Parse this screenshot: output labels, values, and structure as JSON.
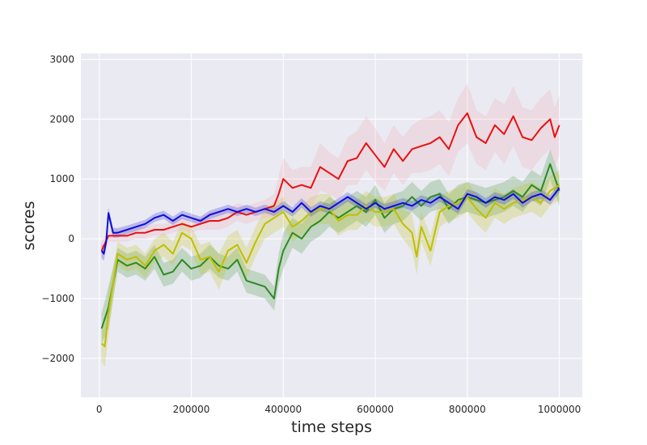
{
  "chart_data": {
    "type": "line",
    "xlabel": "time steps",
    "ylabel": "scores",
    "xlim": [
      -40000,
      1050000
    ],
    "ylim": [
      -2650,
      3100
    ],
    "xticks": [
      0,
      200000,
      400000,
      600000,
      800000,
      1000000
    ],
    "xtick_labels": [
      "0",
      "200000",
      "400000",
      "600000",
      "800000",
      "1000000"
    ],
    "yticks": [
      -2000,
      -1000,
      0,
      1000,
      2000,
      3000
    ],
    "ytick_labels": [
      "−2000",
      "−1000",
      "0",
      "1000",
      "2000",
      "3000"
    ],
    "grid": true,
    "legend": "none",
    "background_color": "#eaeaf2",
    "series": [
      {
        "color": "#2e8b22",
        "band_color": "#2e8b22",
        "x": [
          5000,
          20000,
          40000,
          60000,
          80000,
          100000,
          120000,
          140000,
          160000,
          180000,
          200000,
          220000,
          240000,
          260000,
          280000,
          300000,
          320000,
          340000,
          360000,
          380000,
          390000,
          400000,
          420000,
          440000,
          460000,
          480000,
          500000,
          520000,
          540000,
          560000,
          580000,
          600000,
          620000,
          640000,
          660000,
          680000,
          700000,
          720000,
          740000,
          760000,
          780000,
          800000,
          820000,
          840000,
          860000,
          880000,
          900000,
          920000,
          940000,
          960000,
          980000,
          1000000
        ],
        "y": [
          -1500,
          -1150,
          -350,
          -450,
          -400,
          -500,
          -300,
          -600,
          -550,
          -350,
          -500,
          -450,
          -300,
          -450,
          -500,
          -350,
          -700,
          -750,
          -800,
          -1000,
          -500,
          -200,
          100,
          0,
          200,
          300,
          450,
          350,
          450,
          550,
          450,
          650,
          350,
          500,
          550,
          700,
          550,
          700,
          750,
          500,
          650,
          700,
          650,
          600,
          650,
          700,
          800,
          700,
          900,
          800,
          1250,
          800
        ],
        "band": [
          250,
          350,
          200,
          200,
          200,
          200,
          200,
          200,
          200,
          200,
          200,
          200,
          200,
          200,
          200,
          200,
          200,
          200,
          200,
          200,
          250,
          300,
          250,
          250,
          250,
          250,
          250,
          250,
          250,
          250,
          250,
          250,
          250,
          250,
          250,
          250,
          250,
          250,
          250,
          250,
          250,
          250,
          250,
          250,
          250,
          250,
          250,
          250,
          250,
          250,
          250,
          250
        ]
      },
      {
        "color": "#bfbf00",
        "band_color": "#bfbf00",
        "x": [
          5000,
          12000,
          20000,
          40000,
          60000,
          80000,
          100000,
          120000,
          140000,
          160000,
          180000,
          200000,
          220000,
          240000,
          260000,
          280000,
          300000,
          320000,
          340000,
          360000,
          380000,
          400000,
          420000,
          440000,
          460000,
          480000,
          500000,
          520000,
          540000,
          560000,
          580000,
          600000,
          620000,
          640000,
          660000,
          680000,
          690000,
          700000,
          720000,
          740000,
          760000,
          780000,
          800000,
          820000,
          840000,
          860000,
          880000,
          900000,
          920000,
          940000,
          960000,
          980000,
          1000000
        ],
        "y": [
          -1750,
          -1800,
          -1250,
          -250,
          -350,
          -300,
          -450,
          -200,
          -100,
          -250,
          100,
          0,
          -350,
          -300,
          -550,
          -200,
          -100,
          -400,
          -50,
          250,
          350,
          450,
          200,
          300,
          450,
          500,
          500,
          300,
          400,
          400,
          550,
          450,
          450,
          500,
          250,
          100,
          -300,
          200,
          -200,
          450,
          550,
          600,
          700,
          500,
          350,
          600,
          500,
          600,
          650,
          700,
          600,
          800,
          900
        ],
        "band": [
          300,
          350,
          350,
          200,
          200,
          200,
          200,
          200,
          200,
          200,
          200,
          200,
          250,
          250,
          300,
          250,
          250,
          250,
          250,
          250,
          250,
          250,
          250,
          250,
          250,
          250,
          250,
          250,
          250,
          250,
          250,
          250,
          250,
          250,
          250,
          300,
          300,
          250,
          250,
          250,
          250,
          250,
          250,
          250,
          250,
          250,
          250,
          250,
          250,
          250,
          250,
          250,
          250
        ]
      },
      {
        "color": "#e81010",
        "band_color": "#f2a3a8",
        "x": [
          5000,
          20000,
          40000,
          60000,
          80000,
          100000,
          120000,
          140000,
          160000,
          180000,
          200000,
          220000,
          240000,
          260000,
          280000,
          300000,
          320000,
          340000,
          360000,
          380000,
          390000,
          400000,
          420000,
          440000,
          460000,
          480000,
          500000,
          520000,
          540000,
          560000,
          580000,
          600000,
          620000,
          640000,
          660000,
          680000,
          700000,
          720000,
          740000,
          760000,
          780000,
          800000,
          820000,
          840000,
          860000,
          880000,
          900000,
          920000,
          940000,
          960000,
          980000,
          990000,
          1000000
        ],
        "y": [
          -200,
          50,
          50,
          50,
          100,
          100,
          150,
          150,
          200,
          250,
          200,
          250,
          300,
          300,
          350,
          450,
          400,
          450,
          500,
          550,
          750,
          1000,
          850,
          900,
          850,
          1200,
          1100,
          1000,
          1300,
          1350,
          1600,
          1400,
          1200,
          1500,
          1300,
          1500,
          1550,
          1600,
          1700,
          1500,
          1900,
          2100,
          1700,
          1600,
          1900,
          1750,
          2050,
          1700,
          1650,
          1850,
          2000,
          1700,
          1900
        ],
        "band": [
          150,
          100,
          100,
          100,
          100,
          100,
          100,
          100,
          100,
          100,
          100,
          100,
          150,
          150,
          150,
          150,
          150,
          150,
          150,
          200,
          300,
          350,
          300,
          300,
          350,
          400,
          350,
          350,
          400,
          450,
          450,
          450,
          400,
          400,
          400,
          400,
          450,
          450,
          450,
          450,
          450,
          500,
          450,
          450,
          450,
          500,
          500,
          500,
          500,
          500,
          500,
          500,
          500
        ]
      },
      {
        "color": "#0d0dd6",
        "band_color": "#0d0dd6",
        "x": [
          5000,
          10000,
          15000,
          20000,
          30000,
          40000,
          60000,
          80000,
          100000,
          120000,
          140000,
          160000,
          180000,
          200000,
          220000,
          240000,
          260000,
          280000,
          300000,
          320000,
          340000,
          360000,
          380000,
          400000,
          420000,
          440000,
          460000,
          480000,
          500000,
          520000,
          540000,
          560000,
          580000,
          600000,
          620000,
          640000,
          660000,
          680000,
          700000,
          720000,
          740000,
          760000,
          780000,
          800000,
          820000,
          840000,
          860000,
          880000,
          900000,
          920000,
          940000,
          960000,
          980000,
          1000000
        ],
        "y": [
          -200,
          -250,
          -50,
          430,
          100,
          100,
          150,
          200,
          250,
          350,
          400,
          300,
          400,
          350,
          300,
          400,
          450,
          500,
          450,
          500,
          450,
          500,
          450,
          550,
          450,
          600,
          450,
          550,
          500,
          600,
          700,
          600,
          500,
          600,
          500,
          550,
          600,
          550,
          650,
          600,
          700,
          600,
          500,
          750,
          700,
          600,
          700,
          650,
          750,
          600,
          700,
          750,
          650,
          850
        ],
        "band": [
          120,
          120,
          100,
          100,
          80,
          80,
          70,
          70,
          70,
          70,
          70,
          70,
          70,
          70,
          70,
          70,
          70,
          70,
          70,
          70,
          70,
          70,
          70,
          80,
          80,
          80,
          80,
          80,
          80,
          80,
          80,
          80,
          80,
          80,
          80,
          80,
          80,
          80,
          80,
          80,
          80,
          80,
          80,
          80,
          80,
          80,
          80,
          80,
          80,
          80,
          80,
          80,
          80,
          80
        ]
      }
    ]
  }
}
